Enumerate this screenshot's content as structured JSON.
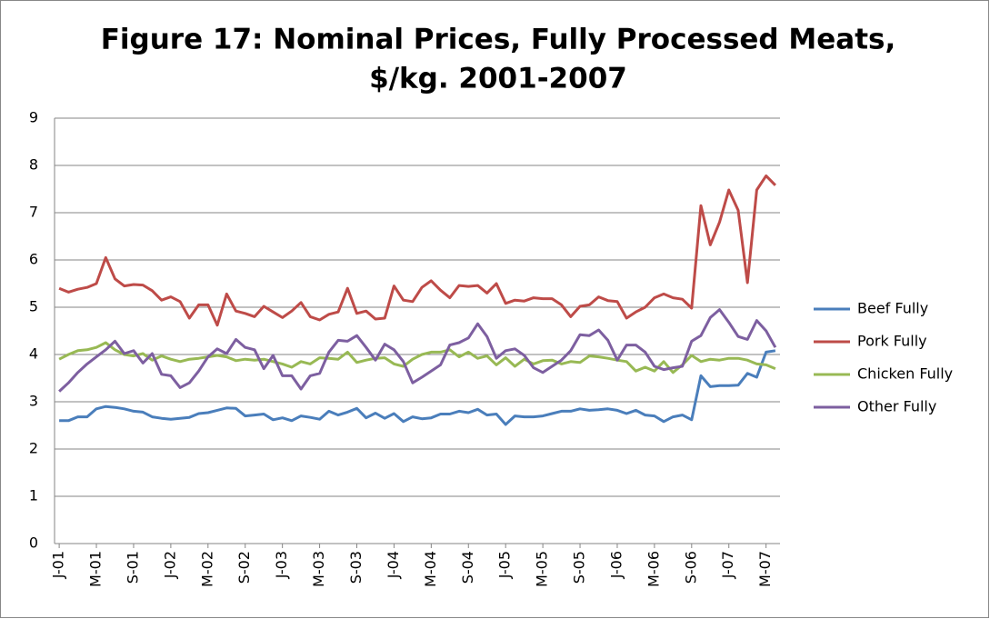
{
  "chart_data": {
    "type": "line",
    "title": [
      "Figure 17: Nominal Prices, Fully Processed Meats,",
      "$/kg. 2001-2007"
    ],
    "categories": [
      "J-01",
      null,
      null,
      null,
      "M-01",
      null,
      null,
      null,
      "S-01",
      null,
      null,
      null,
      "J-02",
      null,
      null,
      null,
      "M-02",
      null,
      null,
      null,
      "S-02",
      null,
      null,
      null,
      "J-03",
      null,
      null,
      null,
      "M-03",
      null,
      null,
      null,
      "S-03",
      null,
      null,
      null,
      "J-04",
      null,
      null,
      null,
      "M-04",
      null,
      null,
      null,
      "S-04",
      null,
      null,
      null,
      "J-05",
      null,
      null,
      null,
      "M-05",
      null,
      null,
      null,
      "S-05",
      null,
      null,
      null,
      "J-06",
      null,
      null,
      null,
      "M-06",
      null,
      null,
      null,
      "S-06",
      null,
      null,
      null,
      "J-07",
      null,
      null,
      null,
      "M-07",
      null
    ],
    "series": [
      {
        "name": "Beef Fully",
        "color": "#4a7ebb",
        "values": [
          2.6,
          2.6,
          2.68,
          2.68,
          2.85,
          2.9,
          2.88,
          2.85,
          2.8,
          2.78,
          2.68,
          2.65,
          2.63,
          2.65,
          2.67,
          2.75,
          2.77,
          2.82,
          2.87,
          2.86,
          2.7,
          2.72,
          2.74,
          2.62,
          2.66,
          2.6,
          2.7,
          2.67,
          2.63,
          2.8,
          2.72,
          2.78,
          2.86,
          2.66,
          2.76,
          2.65,
          2.75,
          2.58,
          2.68,
          2.64,
          2.66,
          2.74,
          2.74,
          2.8,
          2.77,
          2.84,
          2.72,
          2.74,
          2.52,
          2.7,
          2.68,
          2.68,
          2.7,
          2.75,
          2.8,
          2.8,
          2.85,
          2.82,
          2.83,
          2.85,
          2.82,
          2.75,
          2.82,
          2.72,
          2.7,
          2.58,
          2.68,
          2.72,
          2.62,
          3.55,
          3.32,
          3.34,
          3.34,
          3.35,
          3.6,
          3.52,
          4.05,
          4.08
        ]
      },
      {
        "name": "Pork Fully",
        "color": "#be4b48",
        "values": [
          5.4,
          5.32,
          5.38,
          5.42,
          5.5,
          6.05,
          5.6,
          5.45,
          5.48,
          5.47,
          5.35,
          5.15,
          5.22,
          5.12,
          4.77,
          5.05,
          5.05,
          4.62,
          5.28,
          4.92,
          4.87,
          4.8,
          5.02,
          4.9,
          4.78,
          4.92,
          5.1,
          4.8,
          4.73,
          4.85,
          4.9,
          5.4,
          4.87,
          4.92,
          4.75,
          4.77,
          5.45,
          5.15,
          5.12,
          5.42,
          5.56,
          5.36,
          5.2,
          5.46,
          5.44,
          5.46,
          5.3,
          5.5,
          5.08,
          5.15,
          5.13,
          5.2,
          5.18,
          5.18,
          5.05,
          4.8,
          5.02,
          5.05,
          5.22,
          5.14,
          5.12,
          4.77,
          4.9,
          5.0,
          5.2,
          5.28,
          5.2,
          5.17,
          4.98,
          7.15,
          6.32,
          6.8,
          7.48,
          7.05,
          5.52,
          7.48,
          7.78,
          7.58
        ]
      },
      {
        "name": "Chicken Fully",
        "color": "#98b954",
        "values": [
          3.9,
          4.0,
          4.08,
          4.1,
          4.15,
          4.25,
          4.1,
          4.0,
          3.97,
          4.02,
          3.88,
          3.97,
          3.9,
          3.85,
          3.9,
          3.92,
          3.95,
          3.98,
          3.95,
          3.87,
          3.9,
          3.88,
          3.9,
          3.85,
          3.8,
          3.73,
          3.85,
          3.8,
          3.93,
          3.92,
          3.9,
          4.05,
          3.83,
          3.88,
          3.92,
          3.93,
          3.8,
          3.75,
          3.9,
          4.0,
          4.05,
          4.05,
          4.1,
          3.95,
          4.05,
          3.92,
          3.97,
          3.78,
          3.93,
          3.75,
          3.9,
          3.8,
          3.87,
          3.88,
          3.8,
          3.85,
          3.83,
          3.97,
          3.95,
          3.92,
          3.88,
          3.85,
          3.65,
          3.73,
          3.65,
          3.85,
          3.62,
          3.78,
          3.98,
          3.85,
          3.9,
          3.88,
          3.92,
          3.92,
          3.88,
          3.8,
          3.78,
          3.7
        ]
      },
      {
        "name": "Other Fully",
        "color": "#7d5fa0",
        "values": [
          3.22,
          3.4,
          3.62,
          3.8,
          3.95,
          4.1,
          4.28,
          4.02,
          4.08,
          3.82,
          4.02,
          3.58,
          3.55,
          3.3,
          3.4,
          3.65,
          3.95,
          4.12,
          4.02,
          4.32,
          4.15,
          4.1,
          3.7,
          3.98,
          3.55,
          3.55,
          3.27,
          3.55,
          3.6,
          4.05,
          4.3,
          4.28,
          4.4,
          4.15,
          3.88,
          4.22,
          4.1,
          3.85,
          3.4,
          3.52,
          3.65,
          3.78,
          4.2,
          4.25,
          4.35,
          4.65,
          4.38,
          3.92,
          4.08,
          4.12,
          3.98,
          3.72,
          3.62,
          3.75,
          3.88,
          4.08,
          4.42,
          4.4,
          4.52,
          4.3,
          3.88,
          4.2,
          4.2,
          4.05,
          3.75,
          3.68,
          3.72,
          3.75,
          4.28,
          4.4,
          4.78,
          4.95,
          4.68,
          4.38,
          4.32,
          4.72,
          4.5,
          4.15
        ]
      }
    ],
    "ylim": [
      0,
      9
    ],
    "yticks": [
      0,
      1,
      2,
      3,
      4,
      5,
      6,
      7,
      8,
      9
    ],
    "grid": true,
    "legend": "right"
  }
}
